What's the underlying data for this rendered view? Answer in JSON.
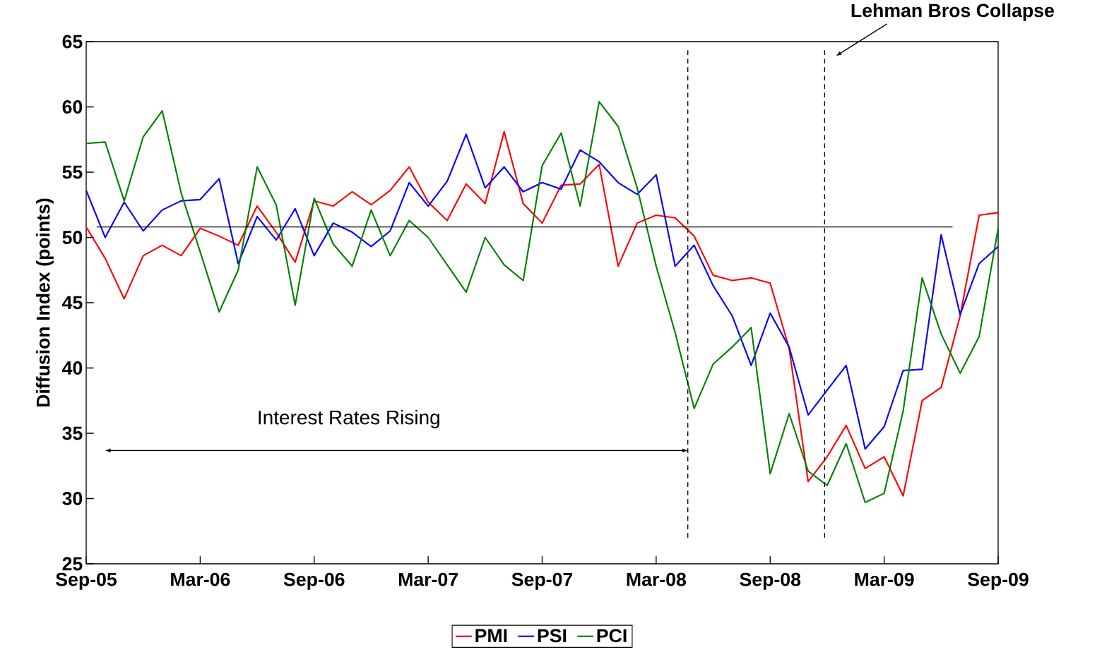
{
  "chart_data": {
    "type": "line",
    "ylabel": "Diffusion Index (points)",
    "x": [
      "2005-09",
      "2005-10",
      "2005-11",
      "2005-12",
      "2006-01",
      "2006-02",
      "2006-03",
      "2006-04",
      "2006-05",
      "2006-06",
      "2006-07",
      "2006-08",
      "2006-09",
      "2006-10",
      "2006-11",
      "2006-12",
      "2007-01",
      "2007-02",
      "2007-03",
      "2007-04",
      "2007-05",
      "2007-06",
      "2007-07",
      "2007-08",
      "2007-09",
      "2007-10",
      "2007-11",
      "2007-12",
      "2008-01",
      "2008-02",
      "2008-03",
      "2008-04",
      "2008-05",
      "2008-06",
      "2008-07",
      "2008-08",
      "2008-09",
      "2008-10",
      "2008-11",
      "2008-12",
      "2009-01",
      "2009-02",
      "2009-03",
      "2009-04",
      "2009-05",
      "2009-06",
      "2009-07",
      "2009-08",
      "2009-09"
    ],
    "series": [
      {
        "name": "PMI",
        "color": "#ff0000",
        "values": [
          50.8,
          48.4,
          45.3,
          48.6,
          49.4,
          48.6,
          50.7,
          50.1,
          49.4,
          52.4,
          50.4,
          48.1,
          52.8,
          52.4,
          53.5,
          52.5,
          53.6,
          55.4,
          52.7,
          51.3,
          54.1,
          52.6,
          58.1,
          52.6,
          51.1,
          54.0,
          54.1,
          55.6,
          47.8,
          51.1,
          51.7,
          51.5,
          50.1,
          47.1,
          46.7,
          46.9,
          46.5,
          41.5,
          31.3,
          33.2,
          35.6,
          32.3,
          33.2,
          30.2,
          37.5,
          38.5,
          44.0,
          51.7,
          51.9
        ]
      },
      {
        "name": "PSI",
        "color": "#0000ff",
        "values": [
          53.6,
          50.0,
          52.7,
          50.5,
          52.1,
          52.8,
          52.9,
          54.5,
          48.0,
          51.6,
          49.8,
          52.2,
          48.6,
          51.1,
          50.4,
          49.3,
          50.5,
          54.2,
          52.4,
          54.3,
          57.9,
          53.8,
          55.4,
          53.5,
          54.2,
          53.7,
          56.7,
          55.8,
          54.2,
          53.3,
          54.8,
          47.8,
          49.4,
          46.3,
          44.0,
          40.2,
          44.2,
          41.6,
          36.4,
          38.3,
          40.2,
          33.8,
          35.5,
          39.8,
          39.9,
          50.2,
          44.1,
          48.0,
          49.3
        ]
      },
      {
        "name": "PCI",
        "color": "#008000",
        "values": [
          57.2,
          57.3,
          52.8,
          57.7,
          59.7,
          53.4,
          48.9,
          44.3,
          47.5,
          55.4,
          52.5,
          44.8,
          53.0,
          49.5,
          47.8,
          52.1,
          48.6,
          51.3,
          50.0,
          47.9,
          45.8,
          50.0,
          47.9,
          46.7,
          55.5,
          58.0,
          52.4,
          60.4,
          58.5,
          53.8,
          47.8,
          42.7,
          36.9,
          40.3,
          41.6,
          43.1,
          31.9,
          36.5,
          32.1,
          31.0,
          34.2,
          29.7,
          30.4,
          36.7,
          46.9,
          42.6,
          39.6,
          42.4,
          50.7
        ]
      }
    ],
    "xlim": [
      "2005-09",
      "2009-09"
    ],
    "xticks": [
      {
        "value": "2005-09",
        "label": "Sep-05"
      },
      {
        "value": "2006-03",
        "label": "Mar-06"
      },
      {
        "value": "2006-09",
        "label": "Sep-06"
      },
      {
        "value": "2007-03",
        "label": "Mar-07"
      },
      {
        "value": "2007-09",
        "label": "Sep-07"
      },
      {
        "value": "2008-03",
        "label": "Mar-08"
      },
      {
        "value": "2008-09",
        "label": "Sep-08"
      },
      {
        "value": "2009-03",
        "label": "Mar-09"
      },
      {
        "value": "2009-09",
        "label": "Sep-09"
      }
    ],
    "ylim": [
      25,
      65
    ],
    "yticks": [
      25,
      30,
      35,
      40,
      45,
      50,
      55,
      60,
      65
    ],
    "ref_lines": [
      {
        "axis": "y",
        "value": 50.8,
        "color": "#000000"
      },
      {
        "axis": "x",
        "value": "2008-04-21",
        "color": "#000000",
        "line_style": "dashed"
      },
      {
        "axis": "x",
        "value": "2008-11-27",
        "color": "#000000",
        "line_style": "dashed",
        "label": "Lehman Bros Collapse"
      }
    ],
    "annotations": [
      "Interest Rates Rising"
    ],
    "legend": "bottom",
    "grid": false,
    "line_style": "solid"
  }
}
